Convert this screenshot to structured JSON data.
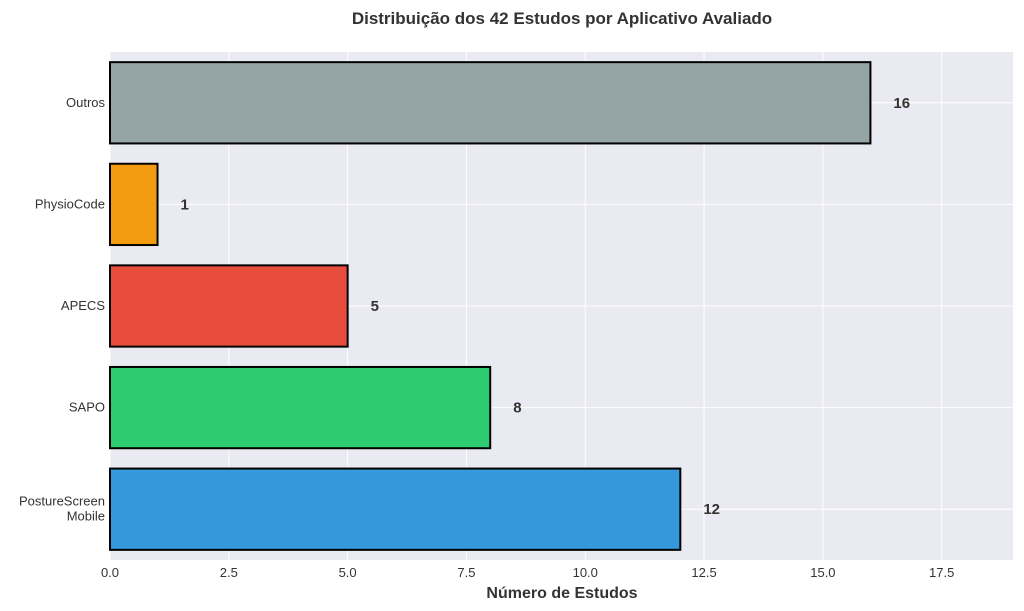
{
  "chart_data": {
    "type": "bar",
    "orientation": "horizontal",
    "title": "Distribuição dos 42 Estudos por Aplicativo Avaliado",
    "xlabel": "Número de Estudos",
    "ylabel": "",
    "categories": [
      "PostureScreen Mobile",
      "SAPO",
      "APECS",
      "PhysioCode",
      "Outros"
    ],
    "category_lines": [
      [
        "PostureScreen",
        "Mobile"
      ],
      [
        "SAPO"
      ],
      [
        "APECS"
      ],
      [
        "PhysioCode"
      ],
      [
        "Outros"
      ]
    ],
    "values": [
      12,
      8,
      5,
      1,
      16
    ],
    "value_labels": [
      "12",
      "8",
      "5",
      "1",
      "16"
    ],
    "colors": [
      "#3498db",
      "#2ecc71",
      "#e74c3c",
      "#f39c12",
      "#95a5a6"
    ],
    "xlim": [
      0,
      19
    ],
    "xticks": [
      0,
      2.5,
      5,
      7.5,
      10,
      12.5,
      15,
      17.5
    ],
    "xtick_labels": [
      "0.0",
      "2.5",
      "5.0",
      "7.5",
      "10.0",
      "12.5",
      "15.0",
      "17.5"
    ],
    "grid": true,
    "background": "#eaeaf2"
  }
}
